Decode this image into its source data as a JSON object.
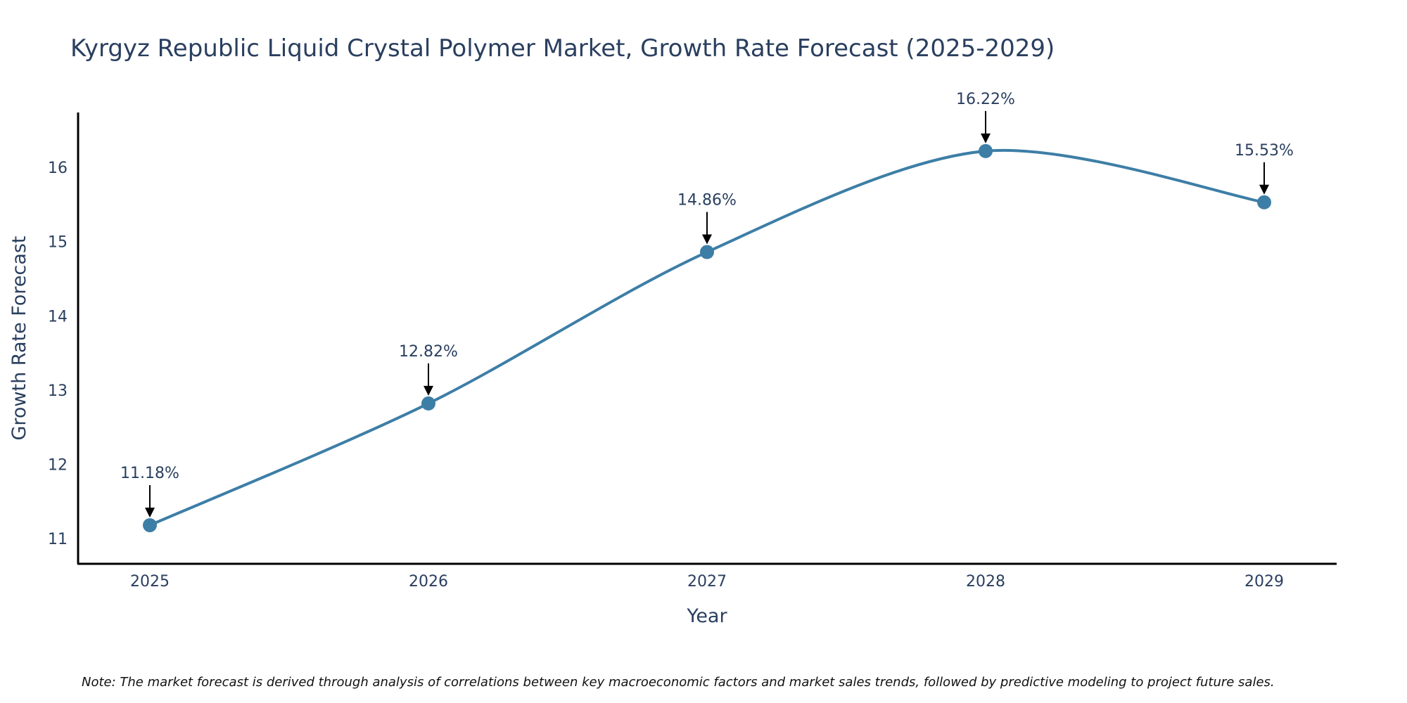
{
  "chart_data": {
    "type": "line",
    "title": "Kyrgyz Republic Liquid Crystal Polymer Market, Growth Rate Forecast (2025-2029)",
    "xlabel": "Year",
    "ylabel": "Growth Rate Forecast",
    "categories": [
      "2025",
      "2026",
      "2027",
      "2028",
      "2029"
    ],
    "series": [
      {
        "values": [
          11.18,
          12.82,
          14.86,
          16.22,
          15.53
        ]
      }
    ],
    "data_labels": [
      "11.18%",
      "12.82%",
      "14.86%",
      "16.22%",
      "15.53%"
    ],
    "y_ticks": [
      11,
      12,
      13,
      14,
      15,
      16
    ],
    "ylim": [
      10.66,
      16.74
    ],
    "line_shape": "spline",
    "grid": false,
    "legend": "none",
    "colors": {
      "line": "#3d7ea6",
      "marker": "#3d7ea6",
      "text": "#2a3f5f",
      "axis": "#000000",
      "arrow": "#000000"
    }
  },
  "note": "Note: The market forecast is derived through analysis of correlations between key macroeconomic factors and market sales trends, followed by predictive modeling to project future sales."
}
